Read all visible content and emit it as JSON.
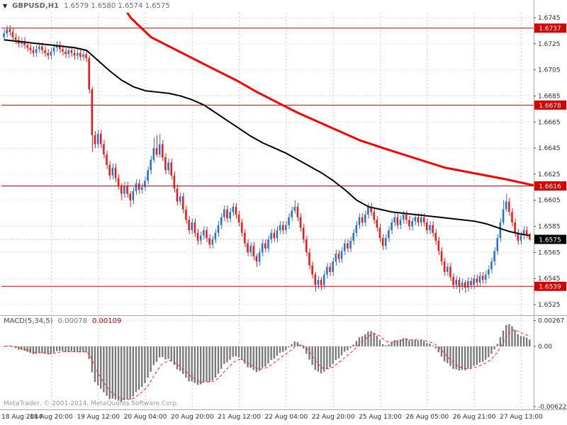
{
  "header": {
    "collapse_icon": "▼",
    "symbol": "GBPUSD,H1",
    "ohlc": "1.6579 1.6580 1.6574 1.6575"
  },
  "footer": {
    "copyright": "MetaTrader, © 2001-2014, MetaQuotes Software Corp."
  },
  "macd": {
    "label": "MACD(5,34,5)",
    "main_value": "0.00078",
    "signal_value": "0.00109",
    "axis_ticks": [
      {
        "v": 0.00267,
        "t": "0.00267"
      },
      {
        "v": 0,
        "t": "0.00"
      },
      {
        "v": -0.00622,
        "t": "-0.00622"
      }
    ]
  },
  "price_axis": {
    "ticks": [
      {
        "v": 1.6745,
        "t": "1.6745"
      },
      {
        "v": 1.6725,
        "t": "1.6725"
      },
      {
        "v": 1.6705,
        "t": "1.6705"
      },
      {
        "v": 1.6685,
        "t": "1.6685"
      },
      {
        "v": 1.6665,
        "t": "1.6665"
      },
      {
        "v": 1.6645,
        "t": "1.6645"
      },
      {
        "v": 1.6625,
        "t": "1.6625"
      },
      {
        "v": 1.6605,
        "t": "1.6605"
      },
      {
        "v": 1.6585,
        "t": "1.6585"
      },
      {
        "v": 1.6565,
        "t": "1.6565"
      },
      {
        "v": 1.6545,
        "t": "1.6545"
      },
      {
        "v": 1.6525,
        "t": "1.6525"
      }
    ],
    "current": {
      "v": 1.6575,
      "t": "1.6575"
    }
  },
  "time_axis": {
    "bars_per_label": 16,
    "labels": [
      "18 Aug 2014",
      "18 Aug 20:00",
      "19 Aug 12:00",
      "20 Aug 04:00",
      "20 Aug 20:00",
      "21 Aug 12:00",
      "22 Aug 04:00",
      "22 Aug 20:00",
      "25 Aug 13:00",
      "26 Aug 05:00",
      "26 Aug 21:00",
      "27 Aug 13:00"
    ]
  },
  "colors": {
    "up_candle": "#2474cc",
    "down_candle": "#f21616",
    "level_line": "#e00000",
    "level_label_bg": "#d40000",
    "price_label_bg": "#000000",
    "ma_red": "#ff0000",
    "ma_black": "#000000",
    "macd_bar": "#787878",
    "macd_signal": "#ff2020",
    "grid": "#dadada",
    "grid_v": "#c8c8c8",
    "separator": "#a8a8a8",
    "bid_line": "#bcbcbc"
  },
  "chart_data": {
    "type": "candlestick",
    "symbol": "GBPUSD",
    "timeframe": "H1",
    "ylim": [
      1.6525,
      1.6745
    ],
    "bar_count": 180,
    "first_open": 1.673,
    "closes": [
      1.6733,
      1.6736,
      1.6734,
      1.673,
      1.6728,
      1.6725,
      1.6727,
      1.6724,
      1.6722,
      1.672,
      1.6718,
      1.6721,
      1.6723,
      1.672,
      1.6718,
      1.6716,
      1.6719,
      1.6722,
      1.6724,
      1.6721,
      1.6719,
      1.6717,
      1.672,
      1.6718,
      1.6716,
      1.6718,
      1.6715,
      1.6717,
      1.6714,
      1.669,
      1.6655,
      1.6648,
      1.6656,
      1.6648,
      1.664,
      1.6632,
      1.6624,
      1.663,
      1.6622,
      1.6616,
      1.661,
      1.6616,
      1.661,
      1.6605,
      1.6612,
      1.6618,
      1.6613,
      1.6615,
      1.662,
      1.6628,
      1.6636,
      1.6645,
      1.664,
      1.6648,
      1.6638,
      1.6628,
      1.6634,
      1.6624,
      1.6614,
      1.6604,
      1.6608,
      1.6598,
      1.659,
      1.6582,
      1.6588,
      1.658,
      1.6574,
      1.6578,
      1.6582,
      1.6576,
      1.6571,
      1.6575,
      1.658,
      1.6586,
      1.6592,
      1.6598,
      1.6591,
      1.6596,
      1.66,
      1.6594,
      1.6588,
      1.658,
      1.6572,
      1.6565,
      1.657,
      1.6562,
      1.6558,
      1.6565,
      1.6572,
      1.6568,
      1.6575,
      1.658,
      1.6576,
      1.6582,
      1.6586,
      1.6582,
      1.6586,
      1.6592,
      1.6597,
      1.66,
      1.6592,
      1.6584,
      1.6575,
      1.6565,
      1.6555,
      1.6548,
      1.654,
      1.6544,
      1.654,
      1.6548,
      1.6554,
      1.655,
      1.6558,
      1.6564,
      1.656,
      1.6566,
      1.6572,
      1.6568,
      1.6574,
      1.658,
      1.6586,
      1.6592,
      1.6588,
      1.6594,
      1.66,
      1.6596,
      1.659,
      1.6584,
      1.6576,
      1.657,
      1.6576,
      1.6582,
      1.6588,
      1.6592,
      1.6586,
      1.659,
      1.6594,
      1.659,
      1.6585,
      1.6589,
      1.6592,
      1.6588,
      1.6592,
      1.6588,
      1.6582,
      1.6586,
      1.658,
      1.6574,
      1.6566,
      1.6558,
      1.655,
      1.6554,
      1.6546,
      1.654,
      1.6544,
      1.6539,
      1.6542,
      1.6538,
      1.6543,
      1.654,
      1.6545,
      1.6542,
      1.6547,
      1.6544,
      1.6548,
      1.6552,
      1.6558,
      1.6566,
      1.6576,
      1.6588,
      1.6598,
      1.6604,
      1.6596,
      1.6588,
      1.658,
      1.6574,
      1.6578,
      1.6582,
      1.6579,
      1.6575
    ],
    "default_wick": 0.0003,
    "wick_overrides": {
      "29": [
        0.0002,
        0.0003
      ],
      "30": [
        0.0002,
        0.0013
      ],
      "40": [
        0.0002,
        0.0005
      ],
      "43": [
        0.0002,
        0.0005
      ],
      "51": [
        0.0008,
        0.0002
      ],
      "52": [
        0.001,
        0.0002
      ],
      "53": [
        0.0008,
        0.0002
      ],
      "86": [
        0.0002,
        0.0004
      ],
      "99": [
        0.0005,
        0.0002
      ],
      "106": [
        0.0002,
        0.0005
      ],
      "108": [
        0.0002,
        0.0004
      ],
      "155": [
        0.0002,
        0.0005
      ],
      "157": [
        0.0002,
        0.0004
      ],
      "170": [
        0.0007,
        0.0002
      ],
      "171": [
        0.0006,
        0.0002
      ],
      "179": [
        0.0001,
        0.0001
      ]
    },
    "levels": [
      {
        "v": 1.6737,
        "t": "1.6737"
      },
      {
        "v": 1.6678,
        "t": "1.6678"
      },
      {
        "v": 1.6616,
        "t": "1.6616"
      },
      {
        "v": 1.6539,
        "t": "1.6539"
      }
    ],
    "ma_red": [
      [
        41,
        1.6752
      ],
      [
        43,
        1.6745
      ],
      [
        50,
        1.673
      ],
      [
        57,
        1.6722
      ],
      [
        64,
        1.6714
      ],
      [
        71,
        1.6706
      ],
      [
        79,
        1.6697
      ],
      [
        86,
        1.6688
      ],
      [
        93,
        1.668
      ],
      [
        100,
        1.6672
      ],
      [
        107,
        1.6665
      ],
      [
        114,
        1.6658
      ],
      [
        121,
        1.6651
      ],
      [
        129,
        1.6645
      ],
      [
        136,
        1.664
      ],
      [
        143,
        1.6635
      ],
      [
        150,
        1.663
      ],
      [
        157,
        1.6627
      ],
      [
        164,
        1.6624
      ],
      [
        171,
        1.6621
      ],
      [
        179,
        1.6617
      ],
      [
        182,
        1.6616
      ]
    ],
    "ma_black": [
      [
        0,
        1.6728
      ],
      [
        8,
        1.6726
      ],
      [
        16,
        1.6724
      ],
      [
        24,
        1.6722
      ],
      [
        28,
        1.672
      ],
      [
        32,
        1.6712
      ],
      [
        36,
        1.6704
      ],
      [
        40,
        1.6697
      ],
      [
        44,
        1.6692
      ],
      [
        48,
        1.6689
      ],
      [
        52,
        1.6688
      ],
      [
        56,
        1.6687
      ],
      [
        60,
        1.6685
      ],
      [
        64,
        1.6682
      ],
      [
        68,
        1.6678
      ],
      [
        72,
        1.6672
      ],
      [
        76,
        1.6666
      ],
      [
        80,
        1.666
      ],
      [
        84,
        1.6654
      ],
      [
        88,
        1.6649
      ],
      [
        92,
        1.6645
      ],
      [
        96,
        1.6641
      ],
      [
        100,
        1.6636
      ],
      [
        104,
        1.6631
      ],
      [
        108,
        1.6626
      ],
      [
        112,
        1.662
      ],
      [
        116,
        1.6613
      ],
      [
        120,
        1.6605
      ],
      [
        124,
        1.66
      ],
      [
        128,
        1.6598
      ],
      [
        132,
        1.6596
      ],
      [
        136,
        1.6595
      ],
      [
        140,
        1.6594
      ],
      [
        144,
        1.6593
      ],
      [
        148,
        1.6592
      ],
      [
        152,
        1.6591
      ],
      [
        156,
        1.659
      ],
      [
        160,
        1.6589
      ],
      [
        164,
        1.6587
      ],
      [
        168,
        1.6584
      ],
      [
        172,
        1.6581
      ],
      [
        176,
        1.6579
      ],
      [
        179,
        1.6578
      ]
    ],
    "macd": {
      "fast": 5,
      "slow": 34,
      "signal": 5,
      "main_current": 0.00078,
      "signal_current": 0.00109,
      "ylim": [
        -0.00622,
        0.003
      ]
    }
  }
}
